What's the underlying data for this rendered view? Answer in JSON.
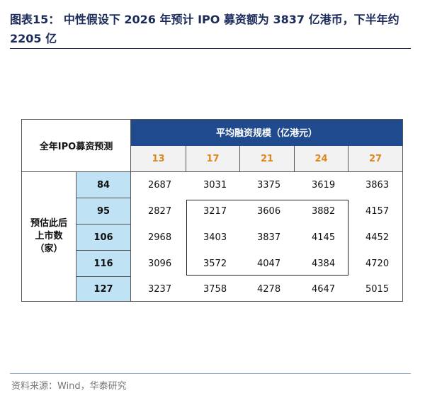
{
  "header": {
    "title": "图表15：  中性假设下 2026 年预计 IPO 募资额为 3837 亿港币，下半年约 2205 亿"
  },
  "table": {
    "corner": "全年IPO募资预测",
    "column_group": "平均融资规模（亿港元）",
    "columns": [
      13,
      17,
      21,
      24,
      27
    ],
    "row_group": [
      "预估此后",
      "上市数",
      "（家）"
    ],
    "row_keys": [
      84,
      95,
      106,
      116,
      127
    ],
    "rows": [
      [
        2687,
        3031,
        3375,
        3619,
        3863
      ],
      [
        2827,
        3217,
        3606,
        3882,
        4157
      ],
      [
        2968,
        3403,
        3837,
        4145,
        4452
      ],
      [
        3096,
        3572,
        4047,
        4384,
        4720
      ],
      [
        3237,
        3758,
        4278,
        4647,
        5015
      ]
    ]
  },
  "footer": {
    "source": "资料来源：Wind，华泰研究"
  }
}
